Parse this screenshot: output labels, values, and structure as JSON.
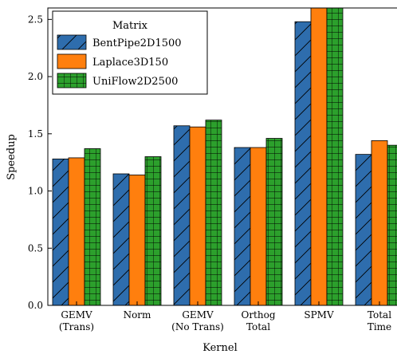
{
  "chart_data": {
    "type": "bar",
    "xlabel": "Kernel",
    "ylabel": "Speedup",
    "ylim": [
      0.0,
      2.6
    ],
    "yticks": [
      "0.0",
      "0.5",
      "1.0",
      "1.5",
      "2.0",
      "2.5"
    ],
    "categories": [
      [
        "GEMV",
        "(Trans)"
      ],
      [
        "Norm"
      ],
      [
        "GEMV",
        "(No Trans)"
      ],
      [
        "Orthog",
        "Total"
      ],
      [
        "SPMV"
      ],
      [
        "Total",
        "Time"
      ]
    ],
    "legend": {
      "title": "Matrix",
      "position": "top-left"
    },
    "grid": false,
    "series": [
      {
        "name": "BentPipe2D1500",
        "color": "#2e6dad",
        "hatch": "diagonal",
        "values": [
          1.28,
          1.15,
          1.57,
          1.38,
          2.48,
          1.32
        ]
      },
      {
        "name": "Laplace3D150",
        "color": "#ff7f0e",
        "hatch": "none",
        "values": [
          1.29,
          1.14,
          1.56,
          1.38,
          2.75,
          1.44
        ]
      },
      {
        "name": "UniFlow2D2500",
        "color": "#2ca02c",
        "hatch": "grid",
        "values": [
          1.37,
          1.3,
          1.62,
          1.46,
          2.75,
          1.4
        ]
      }
    ]
  }
}
